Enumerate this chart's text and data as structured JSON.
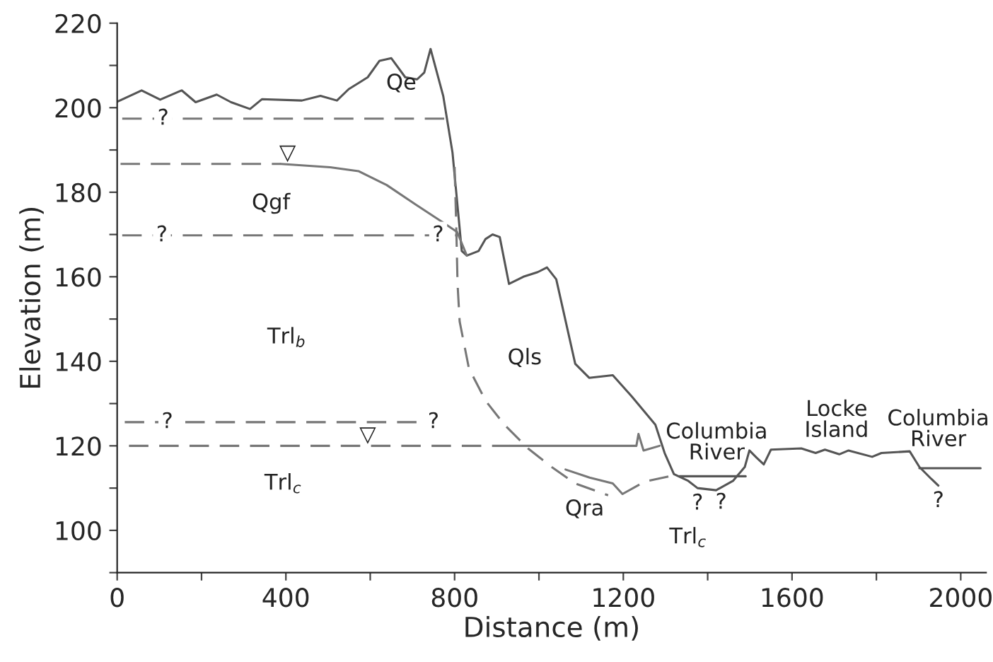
{
  "chart_data": {
    "type": "line",
    "xlabel": "Distance (m)",
    "ylabel": "Elevation (m)",
    "xlim": [
      0,
      2060
    ],
    "ylim": [
      90,
      220
    ],
    "xticks": [
      0,
      {
        "value": 200,
        "label": null
      },
      400,
      {
        "value": 600,
        "label": null
      },
      800,
      {
        "value": 1000,
        "label": null
      },
      1200,
      {
        "value": 1400,
        "label": null
      },
      1600,
      {
        "value": 1800,
        "label": null
      },
      2000
    ],
    "yticks": [
      {
        "value": 90,
        "label": null
      },
      100,
      {
        "value": 110,
        "label": null
      },
      120,
      {
        "value": 130,
        "label": null
      },
      140,
      {
        "value": 150,
        "label": null
      },
      160,
      {
        "value": 170,
        "label": null
      },
      180,
      {
        "value": 190,
        "label": null
      },
      200,
      {
        "value": 210,
        "label": null
      },
      220
    ],
    "grid": false,
    "legend": false,
    "series": [
      {
        "color": "#555555",
        "line_style": "solid",
        "x": [
          0,
          58,
          102,
          153,
          186,
          236,
          270,
          315,
          343,
          438,
          482,
          521,
          549,
          594,
          622,
          650,
          683,
          711,
          728,
          743,
          773,
          795,
          817,
          829,
          857,
          873,
          890,
          907,
          929,
          963,
          997,
          1019,
          1041,
          1086,
          1119,
          1175,
          1220,
          1276,
          1298,
          1320,
          1354,
          1376,
          1420,
          1460,
          1488,
          1499,
          1516,
          1533,
          1550,
          1622,
          1656,
          1678,
          1712,
          1734,
          1790,
          1812,
          1879,
          1902,
          1930,
          1947
        ],
        "values": [
          201.4,
          204.1,
          201.9,
          204.1,
          201.3,
          203.1,
          201.3,
          199.7,
          202,
          201.7,
          202.8,
          201.7,
          204.4,
          207.2,
          211.1,
          211.7,
          207.2,
          206.7,
          208.3,
          213.9,
          202.8,
          189.4,
          166.1,
          165,
          166.1,
          168.9,
          170,
          169.4,
          158.3,
          160,
          161.1,
          162.2,
          159.4,
          139.4,
          136.1,
          136.7,
          131.7,
          125,
          118.3,
          113.3,
          111.7,
          110,
          109.5,
          111.7,
          115,
          118.9,
          117.2,
          115.6,
          119.1,
          119.4,
          118.3,
          119.1,
          118,
          118.9,
          117.4,
          118.3,
          118.7,
          115,
          112.2,
          110.6
        ]
      },
      {
        "color": "#555555",
        "line_style": "solid",
        "x": [
          1333,
          1490
        ],
        "values": [
          112.8,
          112.8
        ]
      },
      {
        "color": "#555555",
        "line_style": "solid",
        "x": [
          1902,
          2047
        ],
        "values": [
          114.7,
          114.7
        ]
      },
      {
        "color": "#777777",
        "line_style": "dashed",
        "x": [
          12,
          779
        ],
        "values": [
          197.4,
          197.4
        ]
      },
      {
        "color": "#777777",
        "line_style": "dashed",
        "x": [
          8,
          388
        ],
        "values": [
          186.7,
          186.7
        ]
      },
      {
        "color": "#777777",
        "line_style": "solid",
        "x": [
          388,
          505,
          572,
          639,
          706,
          773,
          806,
          829
        ],
        "values": [
          186.7,
          185.9,
          185,
          181.7,
          177.2,
          172.8,
          170.6,
          165
        ]
      },
      {
        "color": "#777777",
        "line_style": "dashed",
        "x": [
          12,
          806
        ],
        "values": [
          169.8,
          169.8
        ]
      },
      {
        "color": "#777777",
        "line_style": "dashed",
        "x": [
          800,
          804,
          807,
          812,
          834,
          874,
          918,
          974,
          1030,
          1086,
          1164
        ],
        "values": [
          186,
          171.7,
          158.3,
          149.4,
          138.3,
          130.6,
          125,
          119.4,
          115,
          111.1,
          108.3
        ]
      },
      {
        "color": "#777777",
        "line_style": "solid",
        "x": [
          1063,
          1120,
          1175,
          1198
        ],
        "values": [
          114.4,
          112.5,
          111.1,
          108.6
        ]
      },
      {
        "color": "#777777",
        "line_style": "dashed",
        "x": [
          1198,
          1250,
          1309
        ],
        "values": [
          108.6,
          111.5,
          112.8
        ]
      },
      {
        "color": "#777777",
        "line_style": "dashed",
        "x": [
          18,
          750
        ],
        "values": [
          125.6,
          125.6
        ]
      },
      {
        "color": "#777777",
        "line_style": "dashed",
        "x": [
          28,
          930
        ],
        "values": [
          120,
          120
        ]
      },
      {
        "color": "#777777",
        "line_style": "solid",
        "x": [
          930,
          1231,
          1236,
          1248,
          1286
        ],
        "values": [
          120,
          120,
          122.8,
          118.9,
          120
        ]
      }
    ],
    "annotations": [
      "Qe",
      "Qgf",
      "Trl$_{b}$",
      "Trl$_{c}$",
      "Qls",
      "Qra",
      "Trl$_{c}$",
      "Columbia\nRiver",
      "Locke\nIsland",
      "Columbia\nRiver",
      {
        "text": "?",
        "x": 109,
        "y": 197.4
      },
      {
        "text": "?",
        "x": 106,
        "y": 169.8
      },
      {
        "text": "?",
        "x": 761,
        "y": 169.8
      },
      {
        "text": "?",
        "x": 119,
        "y": 125.6
      },
      {
        "text": "?",
        "x": 750,
        "y": 125.6
      },
      {
        "text": "?",
        "x": 1376,
        "y": 110
      },
      {
        "text": "?",
        "x": 1432,
        "y": 110.2
      },
      {
        "text": "?",
        "x": 1947,
        "y": 110.6
      },
      {
        "text": "▽",
        "x": 404,
        "y": 186.7
      },
      {
        "text": "▽",
        "x": 594,
        "y": 120
      }
    ]
  }
}
